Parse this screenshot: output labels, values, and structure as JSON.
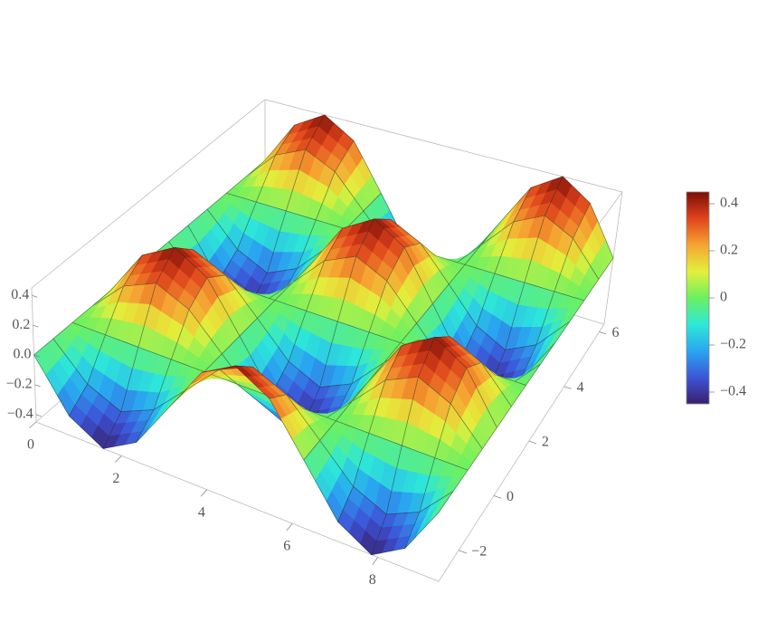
{
  "chart_data": {
    "type": "surface3d",
    "x": [
      0,
      0.785,
      1.571,
      2.356,
      3.142,
      3.927,
      4.712,
      5.498,
      6.283,
      7.069,
      7.854,
      8.639,
      9.425
    ],
    "y": [
      -3.142,
      -2.356,
      -1.571,
      -0.785,
      0,
      0.785,
      1.571,
      2.356,
      3.142,
      3.927,
      4.712,
      5.498,
      6.283
    ],
    "z": [
      [
        0,
        -0.32,
        -0.45,
        -0.32,
        0,
        0.32,
        0.45,
        0.32,
        0,
        -0.32,
        -0.45,
        -0.32,
        0
      ],
      [
        0,
        -0.22,
        -0.32,
        -0.22,
        0,
        0.22,
        0.32,
        0.22,
        0,
        -0.22,
        -0.32,
        -0.22,
        0
      ],
      [
        0,
        0,
        0,
        0,
        0,
        0,
        0,
        0,
        0,
        0,
        0,
        0,
        0
      ],
      [
        0,
        0.22,
        0.32,
        0.22,
        0,
        -0.22,
        -0.32,
        -0.22,
        0,
        0.22,
        0.32,
        0.22,
        0
      ],
      [
        0,
        0.32,
        0.45,
        0.32,
        0,
        -0.32,
        -0.45,
        -0.32,
        0,
        0.32,
        0.45,
        0.32,
        0
      ],
      [
        0,
        0.22,
        0.32,
        0.22,
        0,
        -0.22,
        -0.32,
        -0.22,
        0,
        0.22,
        0.32,
        0.22,
        0
      ],
      [
        0,
        0,
        0,
        0,
        0,
        0,
        0,
        0,
        0,
        0,
        0,
        0,
        0
      ],
      [
        0,
        -0.22,
        -0.32,
        -0.22,
        0,
        0.22,
        0.32,
        0.22,
        0,
        -0.22,
        -0.32,
        -0.22,
        0
      ],
      [
        0,
        -0.32,
        -0.45,
        -0.32,
        0,
        0.32,
        0.45,
        0.32,
        0,
        -0.32,
        -0.45,
        -0.32,
        0
      ],
      [
        0,
        -0.22,
        -0.32,
        -0.22,
        0,
        0.22,
        0.32,
        0.22,
        0,
        -0.22,
        -0.32,
        -0.22,
        0
      ],
      [
        0,
        0,
        0,
        0,
        0,
        0,
        0,
        0,
        0,
        0,
        0,
        0,
        0
      ],
      [
        0,
        0.22,
        0.32,
        0.22,
        0,
        -0.22,
        -0.32,
        -0.22,
        0,
        0.22,
        0.32,
        0.22,
        0
      ],
      [
        0,
        0.32,
        0.45,
        0.32,
        0,
        -0.32,
        -0.45,
        -0.32,
        0,
        0.32,
        0.45,
        0.32,
        0
      ]
    ],
    "xlim": [
      0,
      9.425
    ],
    "ylim": [
      -3.142,
      6.283
    ],
    "zlim": [
      -0.45,
      0.45
    ],
    "xticks": [
      0,
      2,
      4,
      6,
      8
    ],
    "yticks": [
      {
        "value": -2,
        "label": "−2"
      },
      0,
      2,
      4,
      6
    ],
    "zticks": [
      {
        "value": -0.4,
        "label": "−0.4"
      },
      {
        "value": -0.2,
        "label": "−0.2"
      },
      {
        "value": 0,
        "label": "0.0"
      },
      0.2,
      0.4
    ],
    "mesh": true,
    "colormap": [
      "#3a1f6b",
      "#3d55d8",
      "#2aa6f0",
      "#2ee8d8",
      "#6cf060",
      "#e3f03c",
      "#f5a431",
      "#e0441c",
      "#7b0d06"
    ],
    "colorbar": {
      "clim": [
        -0.45,
        0.45
      ],
      "ticks": [
        0.4,
        0.2,
        0,
        {
          "value": -0.2,
          "label": "−0.2"
        },
        {
          "value": -0.4,
          "label": "−0.4"
        }
      ]
    }
  }
}
